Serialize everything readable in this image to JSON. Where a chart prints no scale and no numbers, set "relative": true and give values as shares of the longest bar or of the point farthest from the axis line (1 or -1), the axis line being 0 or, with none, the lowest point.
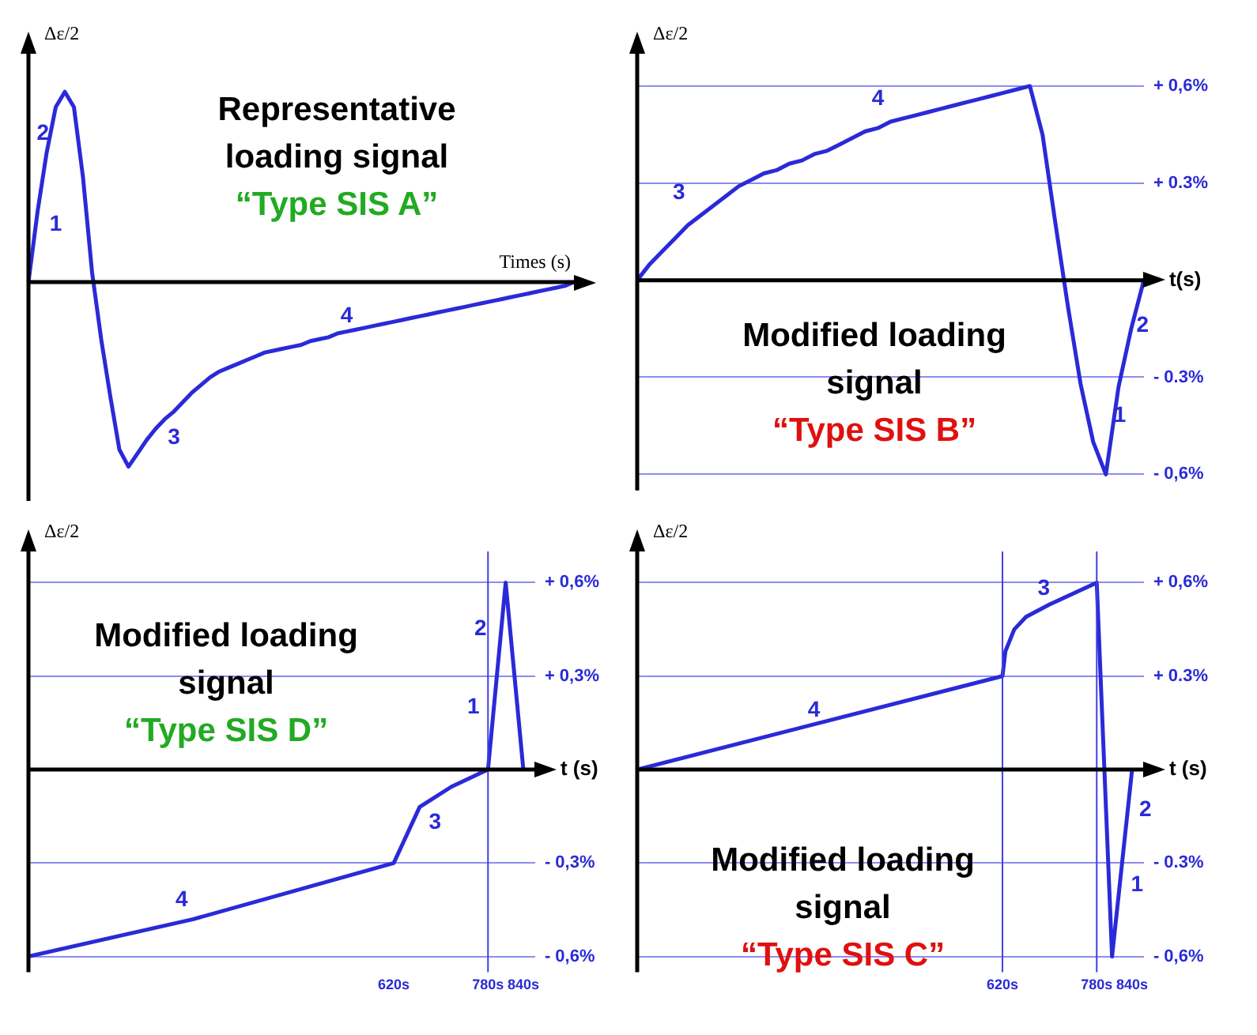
{
  "chart_data": [
    {
      "type": "line",
      "title": "Representative loading signal",
      "subtitle": "“Type SIS A”",
      "xlabel": "Times (s)",
      "ylabel": "Δε/2",
      "relative": true,
      "tick_labels": false,
      "categories": [
        null,
        null,
        null,
        null,
        null,
        null,
        null,
        null,
        null,
        null,
        null,
        null,
        null,
        null,
        null,
        null,
        null,
        null,
        null,
        null,
        null,
        null,
        null,
        null,
        null,
        null,
        null,
        null,
        null,
        null,
        null,
        null,
        null,
        null,
        null,
        null,
        null,
        null,
        null,
        null,
        null,
        null,
        null,
        null,
        null,
        null,
        null,
        null,
        null,
        null,
        null,
        null,
        null,
        null,
        null,
        null,
        null,
        null,
        null,
        null,
        null
      ],
      "series": [
        {
          "color": "#2a2ad8",
          "values": [
            0,
            0.37,
            0.68,
            0.92,
            1,
            0.92,
            0.55,
            0.05,
            -0.3,
            -0.6,
            -0.88,
            -0.97,
            -0.9,
            -0.83,
            -0.77,
            -0.72,
            -0.68,
            -0.63,
            -0.58,
            -0.54,
            -0.5,
            -0.47,
            -0.45,
            -0.43,
            -0.41,
            -0.39,
            -0.37,
            -0.36,
            -0.35,
            -0.34,
            -0.33,
            -0.31,
            -0.3,
            -0.29,
            -0.27,
            -0.26,
            -0.25,
            -0.24,
            -0.23,
            -0.22,
            -0.21,
            -0.2,
            -0.19,
            -0.18,
            -0.17,
            -0.16,
            -0.15,
            -0.14,
            -0.13,
            -0.12,
            -0.11,
            -0.1,
            -0.09,
            -0.08,
            -0.07,
            -0.06,
            -0.05,
            -0.04,
            -0.03,
            -0.02,
            0
          ]
        }
      ],
      "annotations": [
        "1",
        "2",
        "3",
        "4"
      ]
    },
    {
      "type": "line",
      "title": "Modified loading signal",
      "subtitle": "“Type SIS B”",
      "xlabel": "t(s)",
      "ylabel": "Δε/2",
      "tick_labels": "y",
      "grid": "y",
      "categories": [
        null,
        null,
        null,
        null,
        null,
        null,
        null,
        null,
        null,
        null,
        null,
        null,
        null,
        null,
        null,
        null,
        null,
        null,
        null,
        null,
        null,
        null,
        null,
        null,
        null,
        null,
        null,
        null,
        null,
        null,
        null,
        null,
        null,
        null,
        null,
        null,
        null,
        null,
        null,
        null,
        null
      ],
      "ylim": [
        -0.65,
        0.7
      ],
      "yticks": [
        {
          "value": -0.6,
          "label": "- 0,6%"
        },
        {
          "value": -0.3,
          "label": "- 0.3%"
        },
        {
          "value": 0.3,
          "label": "+ 0.3%"
        },
        {
          "value": 0.6,
          "label": "+ 0,6%"
        }
      ],
      "series": [
        {
          "color": "#2a2ad8",
          "values": [
            0,
            0.05,
            0.09,
            0.13,
            0.17,
            0.2,
            0.23,
            0.26,
            0.29,
            0.31,
            0.33,
            0.34,
            0.36,
            0.37,
            0.39,
            0.4,
            0.42,
            0.44,
            0.46,
            0.47,
            0.49,
            0.5,
            0.51,
            0.52,
            0.53,
            0.54,
            0.55,
            0.56,
            0.57,
            0.58,
            0.59,
            0.6,
            0.45,
            0.18,
            -0.08,
            -0.32,
            -0.5,
            -0.6,
            -0.33,
            -0.15,
            0
          ]
        }
      ],
      "annotations": [
        "3",
        "4",
        "2",
        "1"
      ]
    },
    {
      "type": "line",
      "title": "Modified loading signal",
      "subtitle": "“Type SIS D”",
      "xlabel": "t (s)",
      "ylabel": "Δε/2",
      "grid": "y",
      "xlim": [
        0,
        860
      ],
      "xticks": [
        {
          "value": 620,
          "label": "620s"
        },
        {
          "value": 780,
          "label": "780s"
        },
        {
          "value": 840,
          "label": "840s"
        }
      ],
      "ylim": [
        -0.65,
        0.7
      ],
      "yticks": [
        {
          "value": -0.6,
          "label": "- 0,6%"
        },
        {
          "value": -0.3,
          "label": "- 0,3%"
        },
        {
          "value": 0.3,
          "label": "+ 0,3%"
        },
        {
          "value": 0.6,
          "label": "+ 0,6%"
        }
      ],
      "ref_lines": [
        {
          "axis": "x",
          "value": 780
        }
      ],
      "series": [
        {
          "color": "#2a2ad8",
          "x": [
            0,
            280,
            620,
            664,
            718,
            780,
            810,
            840
          ],
          "values": [
            -0.6,
            -0.48,
            -0.3,
            -0.12,
            -0.055,
            0,
            0.6,
            0
          ]
        }
      ],
      "annotations": [
        "4",
        "3",
        "1",
        "2"
      ]
    },
    {
      "type": "line",
      "title": "Modified loading signal",
      "subtitle": "“Type SIS C”",
      "xlabel": "t (s)",
      "ylabel": "Δε/2",
      "grid": "y",
      "xlim": [
        0,
        860
      ],
      "xticks": [
        {
          "value": 620,
          "label": "620s"
        },
        {
          "value": 780,
          "label": "780s"
        },
        {
          "value": 840,
          "label": "840s"
        }
      ],
      "ylim": [
        -0.65,
        0.7
      ],
      "yticks": [
        {
          "value": -0.6,
          "label": "- 0,6%"
        },
        {
          "value": -0.3,
          "label": "- 0.3%"
        },
        {
          "value": 0.3,
          "label": "+ 0.3%"
        },
        {
          "value": 0.6,
          "label": "+ 0,6%"
        }
      ],
      "ref_lines": [
        {
          "axis": "x",
          "value": 620
        },
        {
          "axis": "x",
          "value": 780
        }
      ],
      "series": [
        {
          "color": "#2a2ad8",
          "x": [
            0,
            620,
            625,
            640,
            660,
            700,
            780,
            793,
            806,
            840
          ],
          "values": [
            0,
            0.3,
            0.38,
            0.45,
            0.49,
            0.53,
            0.6,
            0,
            -0.6,
            0
          ]
        }
      ],
      "annotations": [
        "4",
        "3",
        "2",
        "1"
      ]
    }
  ]
}
